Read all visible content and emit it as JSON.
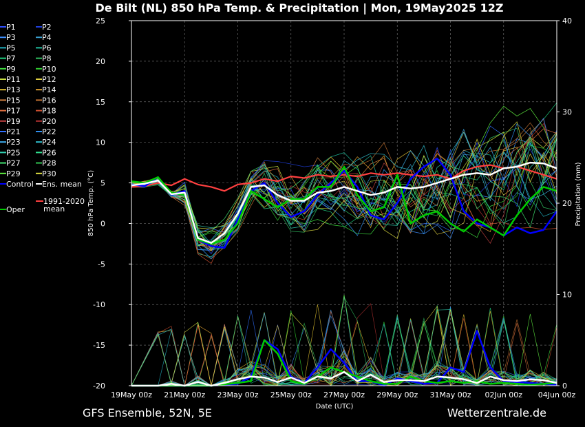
{
  "title": "De Bilt  (NL)  850 hPa Temp. & Precipitation | Mon, 19May2025 12Z",
  "footer_left": "GFS Ensemble, 52N, 5E",
  "footer_right": "Wetterzentrale.de",
  "colors": {
    "background": "#000000",
    "control": "#0000ff",
    "ens_mean": "#ffffff",
    "oper": "#00cc00",
    "climate_mean": "#ff4040",
    "grid": "#666666"
  },
  "chart_data": {
    "type": "line",
    "title": "De Bilt  (NL)  850 hPa Temp. & Precipitation | Mon, 19May2025 12Z",
    "xlabel": "Date (UTC)",
    "ylabel": "850 hPa Temp. (°C)",
    "y2label": "Precipitation (mm)",
    "ylim": [
      -20,
      25
    ],
    "y2lim": [
      0,
      40
    ],
    "yticks": [
      -20,
      -15,
      -10,
      -5,
      0,
      5,
      10,
      15,
      20,
      25
    ],
    "y2ticks": [
      0,
      10,
      20,
      30,
      40
    ],
    "xticks": [
      "19May 00z",
      "21May 00z",
      "23May 00z",
      "25May 00z",
      "27May 00z",
      "29May 00z",
      "31May 00z",
      "02Jun 00z",
      "04Jun 00z"
    ],
    "x_hours_range": [
      0,
      384
    ],
    "grid": true,
    "legend_position": "left",
    "legend": [
      {
        "label": "P1",
        "color": "#3050ff"
      },
      {
        "label": "P2",
        "color": "#2040e0"
      },
      {
        "label": "P3",
        "color": "#4090ff"
      },
      {
        "label": "P4",
        "color": "#3aa0d0"
      },
      {
        "label": "P5",
        "color": "#20b0c0"
      },
      {
        "label": "P6",
        "color": "#20c0a0"
      },
      {
        "label": "P7",
        "color": "#20d080"
      },
      {
        "label": "P8",
        "color": "#30c060"
      },
      {
        "label": "P9",
        "color": "#40e040"
      },
      {
        "label": "P10",
        "color": "#30d030"
      },
      {
        "label": "P11",
        "color": "#c8e040"
      },
      {
        "label": "P12",
        "color": "#e0d040"
      },
      {
        "label": "P13",
        "color": "#e0c030"
      },
      {
        "label": "P14",
        "color": "#e0a030"
      },
      {
        "label": "P15",
        "color": "#d08040"
      },
      {
        "label": "P16",
        "color": "#c07030"
      },
      {
        "label": "P17",
        "color": "#e07040"
      },
      {
        "label": "P18",
        "color": "#d05030"
      },
      {
        "label": "P19",
        "color": "#c04040"
      },
      {
        "label": "P20",
        "color": "#b03030"
      },
      {
        "label": "P21",
        "color": "#3070ff"
      },
      {
        "label": "P22",
        "color": "#3090f0"
      },
      {
        "label": "P23",
        "color": "#40b0f0"
      },
      {
        "label": "P24",
        "color": "#30c0d0"
      },
      {
        "label": "P25",
        "color": "#30d0b0"
      },
      {
        "label": "P26",
        "color": "#30e090"
      },
      {
        "label": "P27",
        "color": "#40e070"
      },
      {
        "label": "P28",
        "color": "#30c050"
      },
      {
        "label": "P29",
        "color": "#60f040"
      },
      {
        "label": "P30",
        "color": "#e0e040"
      },
      {
        "label": "Control",
        "color": "#0000ff"
      },
      {
        "label": "Ens. mean",
        "color": "#ffffff"
      },
      {
        "label": "Oper",
        "color": "#00cc00"
      },
      {
        "label": "1991-2020 mean",
        "color": "#ff4040"
      }
    ],
    "series": [
      {
        "name": "Control",
        "role": "control",
        "axis": "temp",
        "x": [
          0,
          12,
          24,
          36,
          48,
          60,
          72,
          84,
          96,
          108,
          120,
          132,
          144,
          156,
          168,
          180,
          192,
          204,
          216,
          228,
          240,
          252,
          264,
          276,
          288,
          300,
          312,
          324,
          336,
          348,
          360,
          372,
          384
        ],
        "values": [
          4.8,
          4.6,
          5.7,
          3.5,
          4.0,
          -2.0,
          -2.8,
          -3.0,
          0.5,
          4.0,
          5.0,
          2.5,
          0.8,
          1.5,
          3.5,
          5.0,
          6.5,
          4.5,
          1.0,
          0.5,
          2.5,
          5.5,
          7.0,
          8.0,
          6.0,
          1.5,
          0.0,
          -0.5,
          -1.5,
          -0.5,
          -1.2,
          -0.8,
          1.5
        ]
      },
      {
        "name": "Ens. mean",
        "role": "mean",
        "axis": "temp",
        "x": [
          0,
          12,
          24,
          36,
          48,
          60,
          72,
          84,
          96,
          108,
          120,
          132,
          144,
          156,
          168,
          180,
          192,
          204,
          216,
          228,
          240,
          252,
          264,
          276,
          288,
          300,
          312,
          324,
          336,
          348,
          360,
          372,
          384
        ],
        "values": [
          4.7,
          4.9,
          5.3,
          3.6,
          3.8,
          -1.8,
          -2.4,
          -1.2,
          1.2,
          4.5,
          4.7,
          3.5,
          2.8,
          2.8,
          3.8,
          4.0,
          4.5,
          4.0,
          3.5,
          3.8,
          4.5,
          4.3,
          4.5,
          5.0,
          5.5,
          6.0,
          6.2,
          6.0,
          6.8,
          7.0,
          7.5,
          7.4,
          6.8
        ]
      },
      {
        "name": "Oper",
        "role": "oper",
        "axis": "temp",
        "x": [
          0,
          12,
          24,
          36,
          48,
          60,
          72,
          84,
          96,
          108,
          120,
          132,
          144,
          156,
          168,
          180,
          192,
          204,
          216,
          228,
          240,
          252,
          264,
          276,
          288,
          300,
          312,
          324,
          336,
          348,
          360,
          372,
          384
        ],
        "values": [
          5.2,
          5.0,
          5.7,
          3.8,
          3.5,
          -2.0,
          -2.5,
          -2.0,
          0.0,
          4.0,
          3.0,
          2.0,
          3.0,
          3.0,
          4.5,
          4.5,
          7.0,
          3.5,
          1.5,
          2.0,
          6.0,
          0.0,
          1.0,
          1.5,
          0.0,
          -1.0,
          0.5,
          -0.5,
          -1.5,
          1.0,
          3.0,
          4.5,
          4.0
        ]
      },
      {
        "name": "1991-2020 mean",
        "role": "climate",
        "axis": "temp",
        "x": [
          0,
          12,
          24,
          36,
          48,
          60,
          72,
          84,
          96,
          108,
          120,
          132,
          144,
          156,
          168,
          180,
          192,
          204,
          216,
          228,
          240,
          252,
          264,
          276,
          288,
          300,
          312,
          324,
          336,
          348,
          360,
          372,
          384
        ],
        "values": [
          4.5,
          4.6,
          5.0,
          4.7,
          5.5,
          4.8,
          4.5,
          4.0,
          4.8,
          5.0,
          5.5,
          5.2,
          5.8,
          5.6,
          6.0,
          5.8,
          6.0,
          5.8,
          6.2,
          6.0,
          6.2,
          6.0,
          5.8,
          6.0,
          5.5,
          6.5,
          7.0,
          7.2,
          6.8,
          7.0,
          6.5,
          6.0,
          5.5
        ]
      },
      {
        "name": "Control precip",
        "role": "control",
        "axis": "precip",
        "x": [
          0,
          24,
          48,
          72,
          96,
          108,
          120,
          132,
          144,
          156,
          168,
          180,
          192,
          204,
          216,
          228,
          240,
          252,
          264,
          276,
          288,
          300,
          312,
          324,
          336,
          348,
          360,
          372,
          384
        ],
        "values": [
          0,
          0,
          0,
          0,
          0.2,
          1.0,
          5.0,
          4.0,
          1.0,
          0.3,
          2.0,
          4.0,
          2.5,
          0.5,
          0.5,
          0.0,
          0.8,
          0.5,
          0.2,
          0.3,
          2.0,
          1.5,
          6.0,
          2.0,
          0.5,
          0.4,
          0.3,
          0.2,
          0.1
        ]
      },
      {
        "name": "Oper precip",
        "role": "oper",
        "axis": "precip",
        "x": [
          0,
          24,
          48,
          72,
          96,
          108,
          120,
          132,
          144,
          156,
          168,
          180,
          192,
          204,
          216,
          228,
          240,
          252,
          264,
          276,
          288,
          300,
          312,
          324,
          336,
          348,
          360,
          372,
          384
        ],
        "values": [
          0,
          0,
          0,
          0,
          0.3,
          0.5,
          5.0,
          3.5,
          0.5,
          0.2,
          1.0,
          2.0,
          1.5,
          1.0,
          0.5,
          0.2,
          0.2,
          1.0,
          0.5,
          0.3,
          0.5,
          0.3,
          0.5,
          0.2,
          0.3,
          0.2,
          0.1,
          0.2,
          0.3
        ]
      },
      {
        "name": "Ens. mean precip",
        "role": "mean",
        "axis": "precip",
        "x": [
          0,
          24,
          36,
          48,
          60,
          72,
          84,
          96,
          108,
          120,
          132,
          144,
          156,
          168,
          180,
          192,
          204,
          216,
          228,
          240,
          252,
          264,
          276,
          288,
          300,
          312,
          324,
          336,
          348,
          360,
          372,
          384
        ],
        "values": [
          0,
          0,
          0.2,
          0,
          0.4,
          0,
          0.3,
          0.7,
          1.0,
          0.9,
          0.4,
          0.9,
          0.3,
          1.0,
          0.8,
          1.5,
          0.5,
          1.2,
          0.4,
          0.6,
          0.6,
          0.5,
          1.0,
          0.9,
          0.7,
          0.3,
          1.0,
          0.6,
          0.5,
          0.7,
          0.6,
          0.3
        ]
      }
    ]
  }
}
